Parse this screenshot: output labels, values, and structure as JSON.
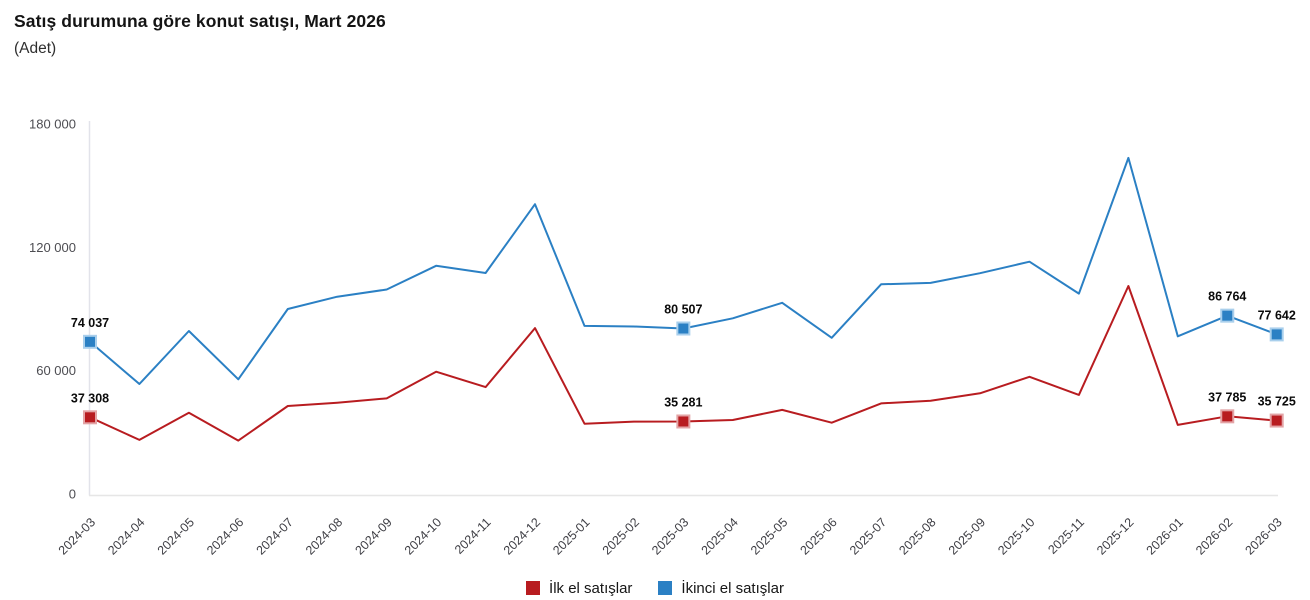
{
  "header": {
    "title": "Satış durumuna göre konut satışı, Mart 2026",
    "subtitle": "(Adet)"
  },
  "colors": {
    "first_hand": "#b81c20",
    "first_hand_light": "#e3a4a6",
    "second_hand": "#2b80c4",
    "second_hand_light": "#a9cfec",
    "axis_v": "#e2e3ea",
    "axis_h": "#e6e6e6",
    "ytick_text": "#4d4d52",
    "xtick_text": "#3e3e44",
    "annotation_text": "#0b0b0b"
  },
  "chart_data": {
    "type": "line",
    "title": "Satış durumuna göre konut satışı, Mart 2026",
    "ylabel": "Adet",
    "xlabel": "",
    "grid": false,
    "legend_position": "bottom",
    "ylim": [
      0,
      180000
    ],
    "yticks": [
      0,
      60000,
      120000,
      180000
    ],
    "ytick_labels": [
      "0",
      "60 000",
      "120 000",
      "180 000"
    ],
    "categories": [
      "2024-03",
      "2024-04",
      "2024-05",
      "2024-06",
      "2024-07",
      "2024-08",
      "2024-09",
      "2024-10",
      "2024-11",
      "2024-12",
      "2025-01",
      "2025-02",
      "2025-03",
      "2025-04",
      "2025-05",
      "2025-06",
      "2025-07",
      "2025-08",
      "2025-09",
      "2025-10",
      "2025-11",
      "2025-12",
      "2026-01",
      "2026-02",
      "2026-03"
    ],
    "series": [
      {
        "name": "İlk el satışlar",
        "color_key": "first_hand",
        "light_key": "first_hand_light",
        "values": [
          37308,
          26300,
          39500,
          26000,
          42800,
          44400,
          46500,
          59500,
          52000,
          80700,
          34200,
          35200,
          35281,
          36000,
          40900,
          34700,
          44100,
          45400,
          49000,
          57000,
          48200,
          101200,
          33600,
          37785,
          35725
        ]
      },
      {
        "name": "İkinci el satışlar",
        "color_key": "second_hand",
        "light_key": "second_hand_light",
        "values": [
          74037,
          53500,
          79300,
          55800,
          90000,
          96000,
          99500,
          111000,
          107500,
          141000,
          81800,
          81500,
          80507,
          85500,
          93000,
          76000,
          102000,
          102700,
          107400,
          113000,
          97500,
          163500,
          76700,
          86764,
          77642
        ]
      }
    ],
    "annotations": [
      {
        "series": "İkinci el satışlar",
        "category": "2024-03",
        "label": "74 037"
      },
      {
        "series": "İkinci el satışlar",
        "category": "2025-03",
        "label": "80 507"
      },
      {
        "series": "İkinci el satışlar",
        "category": "2026-02",
        "label": "86 764"
      },
      {
        "series": "İkinci el satışlar",
        "category": "2026-03",
        "label": "77 642"
      },
      {
        "series": "İlk el satışlar",
        "category": "2024-03",
        "label": "37 308"
      },
      {
        "series": "İlk el satışlar",
        "category": "2025-03",
        "label": "35 281"
      },
      {
        "series": "İlk el satışlar",
        "category": "2026-02",
        "label": "37 785"
      },
      {
        "series": "İlk el satışlar",
        "category": "2026-03",
        "label": "35 725"
      }
    ]
  },
  "legend": {
    "items": [
      {
        "label": "İlk el satışlar"
      },
      {
        "label": "İkinci el satışlar"
      }
    ]
  }
}
